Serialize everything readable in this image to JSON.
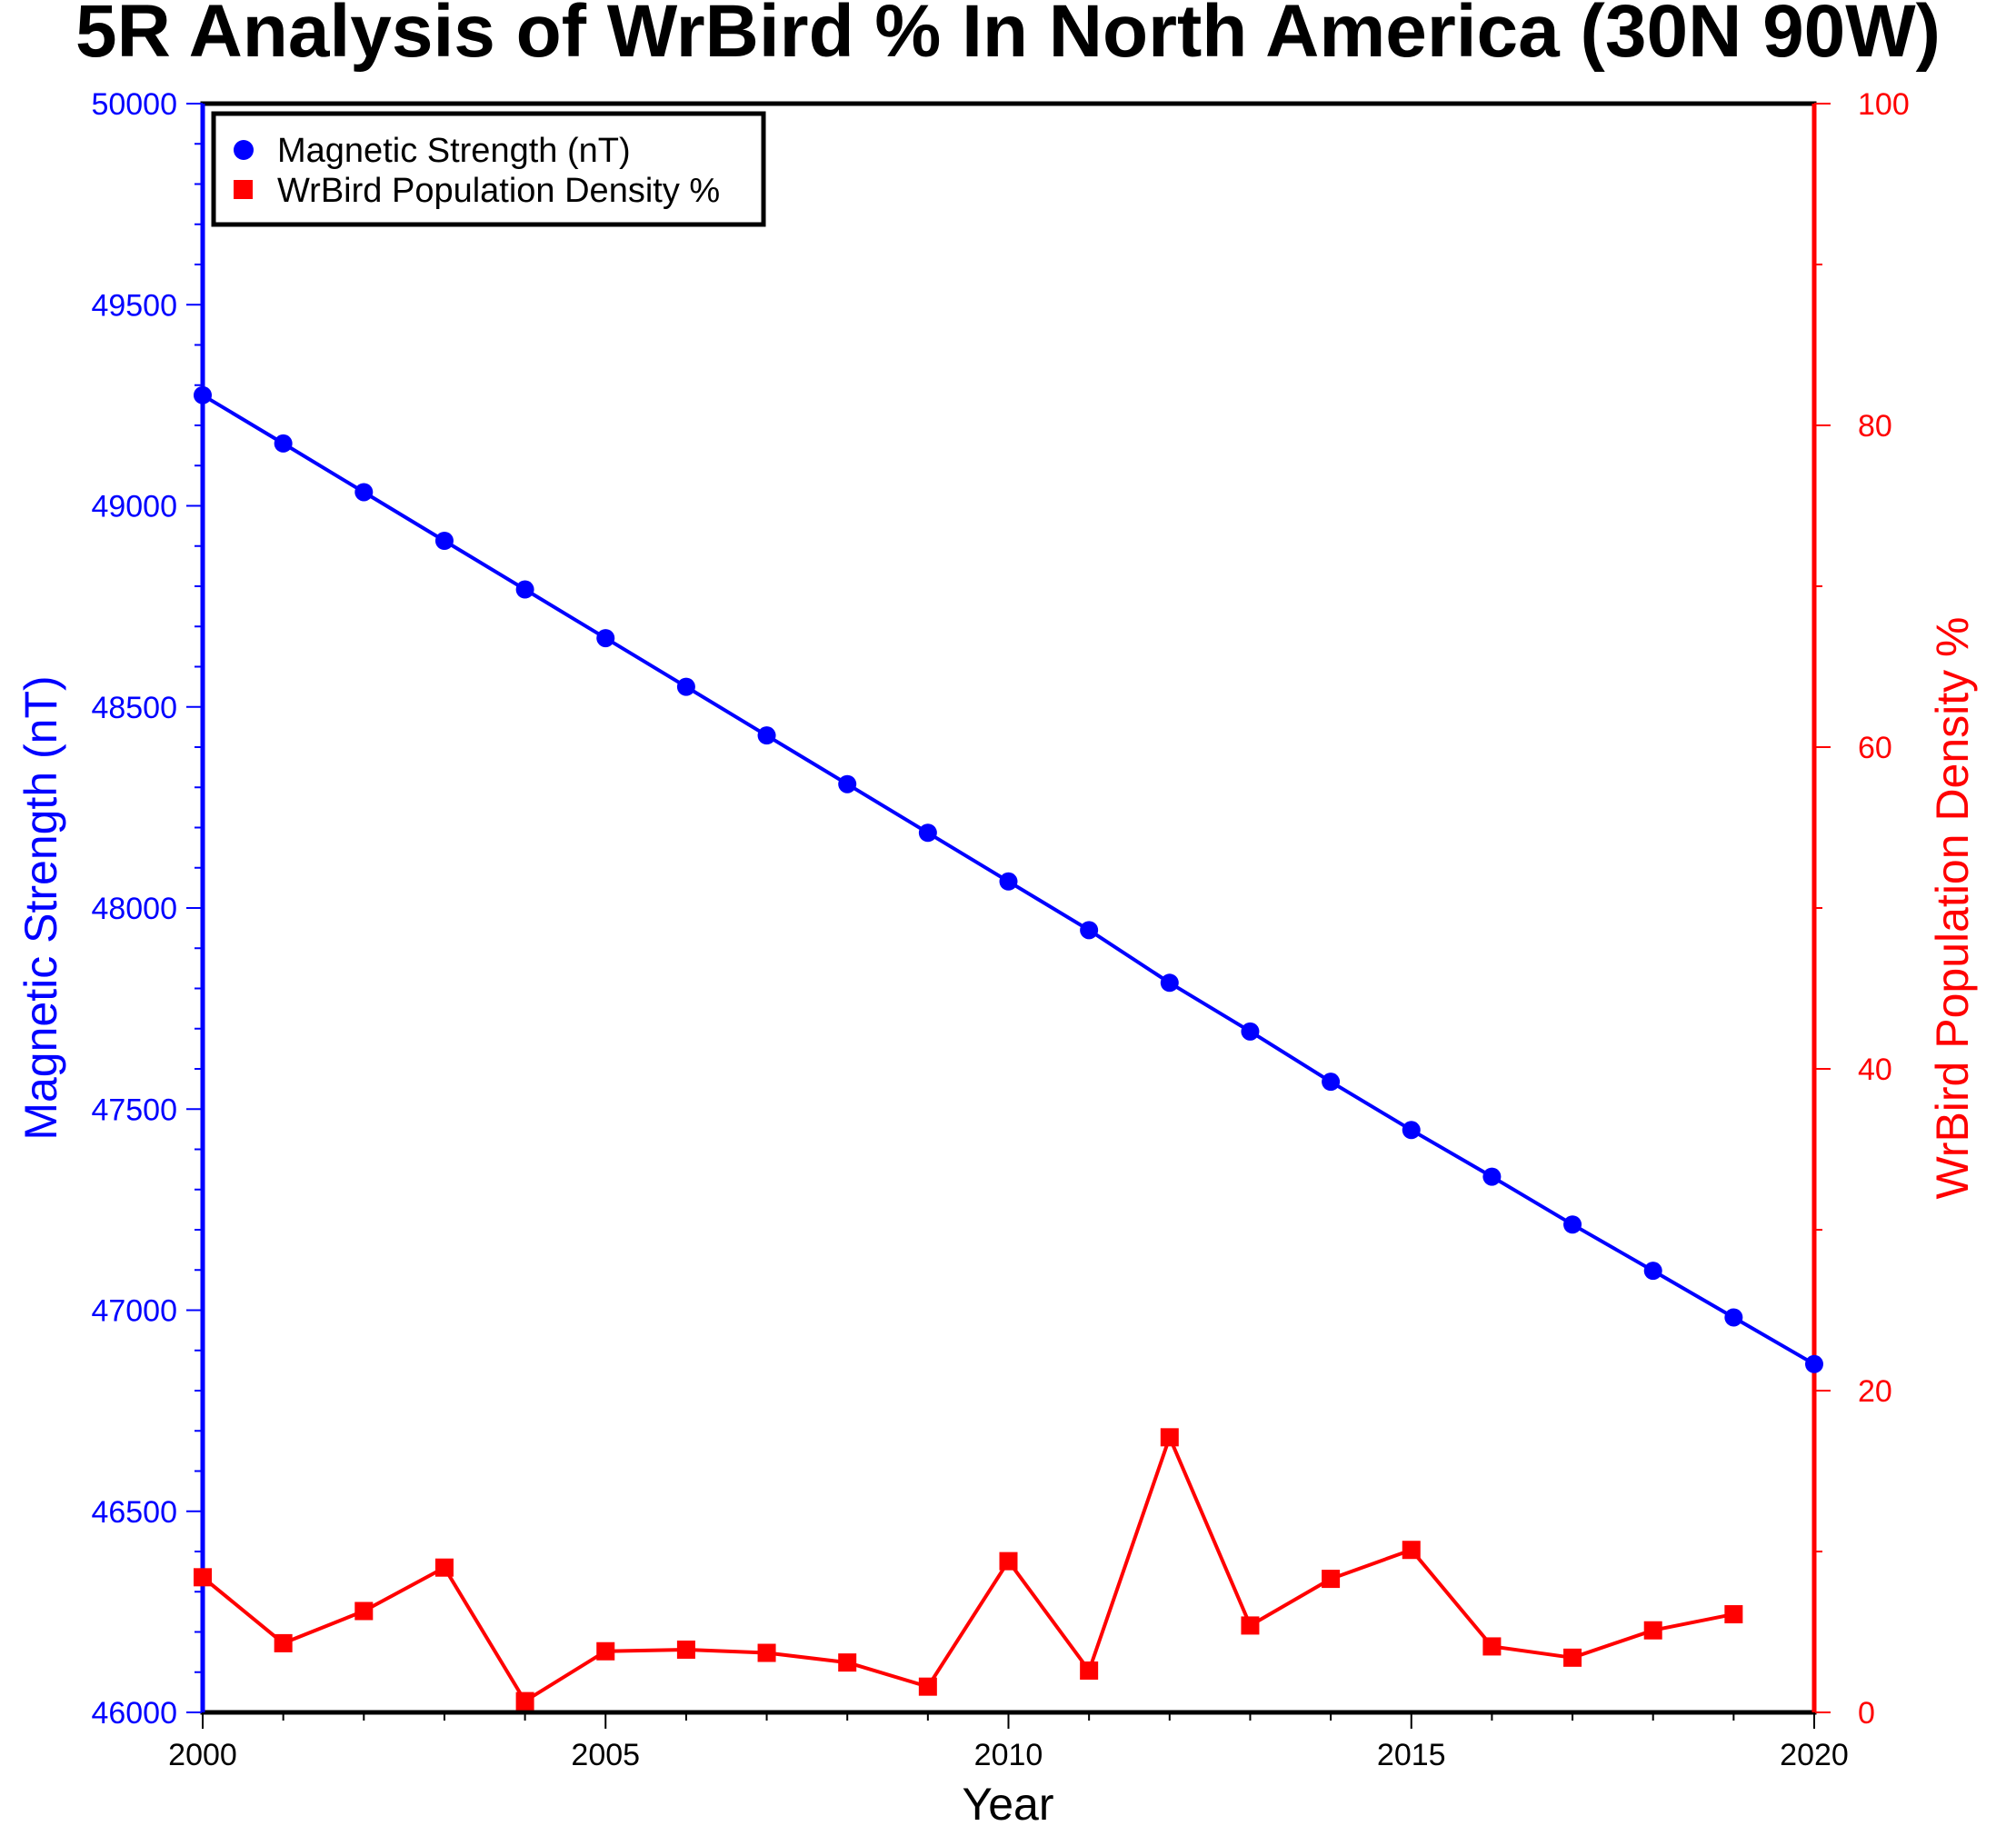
{
  "chart_data": {
    "type": "line",
    "title": "5R Analysis of WrBird % In North America (30N 90W)",
    "xlabel": "Year",
    "ylabel_left": "Magnetic Strength (nT)",
    "ylabel_right": "WrBird Population Density %",
    "xlim": [
      2000,
      2020
    ],
    "ylim_left": [
      46000,
      50000
    ],
    "ylim_right": [
      0,
      100
    ],
    "x_ticks": [
      "2000",
      "2005",
      "2010",
      "2015",
      "2020"
    ],
    "y_left_ticks": [
      "46000",
      "46500",
      "47000",
      "47500",
      "48000",
      "48500",
      "49000",
      "49500",
      "50000"
    ],
    "y_right_ticks": [
      "0",
      "20",
      "40",
      "60",
      "80",
      "100"
    ],
    "legend_position": "top-left",
    "series": [
      {
        "name": "Magnetic Strength (nT)",
        "axis": "left",
        "color": "#0000ff",
        "marker": "circle",
        "x": [
          2000,
          2001,
          2002,
          2003,
          2004,
          2005,
          2006,
          2007,
          2008,
          2009,
          2010,
          2011,
          2012,
          2013,
          2014,
          2015,
          2016,
          2017,
          2018,
          2019,
          2020
        ],
        "values": [
          49275,
          49155,
          49034,
          48913,
          48792,
          48671,
          48550,
          48429,
          48308,
          48187,
          48066,
          47945,
          47814,
          47693,
          47568,
          47448,
          47332,
          47213,
          47098,
          46982,
          46866
        ]
      },
      {
        "name": "WrBird Population Density %",
        "axis": "right",
        "color": "#ff0000",
        "marker": "square",
        "x": [
          2000,
          2001,
          2002,
          2003,
          2004,
          2005,
          2006,
          2007,
          2008,
          2009,
          2010,
          2011,
          2012,
          2013,
          2014,
          2015,
          2016,
          2017,
          2018,
          2019
        ],
        "values": [
          8.4,
          4.3,
          6.3,
          9.0,
          0.7,
          3.8,
          3.9,
          3.7,
          3.1,
          1.6,
          9.4,
          2.6,
          17.1,
          5.4,
          8.3,
          10.1,
          4.1,
          3.4,
          5.1,
          6.1
        ]
      }
    ]
  }
}
